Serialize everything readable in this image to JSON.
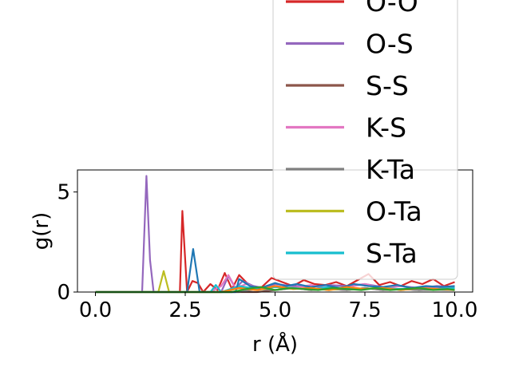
{
  "chart_data": {
    "type": "line",
    "xlabel": "r (Å)",
    "ylabel": "g(r)",
    "xlim": [
      -0.5,
      10.5
    ],
    "ylim": [
      0,
      6.1
    ],
    "xticks": [
      0.0,
      2.5,
      5.0,
      7.5,
      10.0
    ],
    "xtick_labels": [
      "0.0",
      "2.5",
      "5.0",
      "7.5",
      "10.0"
    ],
    "yticks": [
      0,
      5
    ],
    "ytick_labels": [
      "0",
      "5"
    ],
    "grid": false,
    "legend_placement": "upper-right (overflowing top of figure)",
    "series": [
      {
        "name": "O-O",
        "color": "#d62728",
        "x": [
          0,
          2.2,
          2.35,
          2.42,
          2.55,
          2.7,
          2.85,
          3.0,
          3.2,
          3.4,
          3.6,
          3.8,
          4.0,
          4.3,
          4.6,
          4.9,
          5.2,
          5.5,
          5.8,
          6.1,
          6.4,
          6.7,
          7.0,
          7.3,
          7.6,
          7.9,
          8.2,
          8.5,
          8.8,
          9.1,
          9.4,
          9.7,
          10.0
        ],
        "y": [
          0,
          0,
          0,
          4.05,
          0,
          0.55,
          0.45,
          0,
          0.4,
          0.1,
          0.95,
          0.15,
          0.85,
          0.3,
          0.2,
          0.7,
          0.5,
          0.3,
          0.6,
          0.4,
          0.35,
          0.5,
          0.3,
          0.6,
          0.9,
          0.35,
          0.5,
          0.3,
          0.55,
          0.4,
          0.65,
          0.3,
          0.5
        ]
      },
      {
        "name": "O-S",
        "color": "#9467bd",
        "x": [
          0,
          1.3,
          1.42,
          1.52,
          1.62,
          1.72,
          3.5,
          3.7,
          3.9,
          4.1,
          4.4,
          4.7,
          5.0,
          5.5,
          6.0,
          6.5,
          7.0,
          7.5,
          8.0,
          8.5,
          9.0,
          9.5,
          10.0
        ],
        "y": [
          0,
          0,
          5.8,
          1.6,
          0,
          0,
          0,
          0.8,
          0.2,
          0.55,
          0.3,
          0.2,
          0.4,
          0.3,
          0.25,
          0.35,
          0.3,
          0.4,
          0.25,
          0.3,
          0.2,
          0.3,
          0.25
        ]
      },
      {
        "name": "S-S",
        "color": "#8c564b",
        "x": [
          0,
          4.5,
          5.0,
          5.5,
          6.0,
          6.5,
          7.0,
          7.5,
          8.0,
          8.5,
          9.0,
          9.5,
          10.0
        ],
        "y": [
          0,
          0,
          0.1,
          0.2,
          0.1,
          0.15,
          0.1,
          0.2,
          0.1,
          0.15,
          0.1,
          0.12,
          0.1
        ]
      },
      {
        "name": "K-S",
        "color": "#e377c2",
        "x": [
          0,
          3.2,
          3.5,
          3.7,
          3.9,
          4.2,
          4.6,
          5.0,
          5.5,
          6.0,
          6.5,
          7.0,
          7.5,
          8.0,
          8.5,
          9.0,
          9.5,
          10.0
        ],
        "y": [
          0,
          0,
          0.3,
          0.85,
          0.2,
          0.4,
          0.15,
          0.3,
          0.2,
          0.35,
          0.15,
          0.25,
          0.4,
          0.2,
          0.3,
          0.15,
          0.25,
          0.2
        ]
      },
      {
        "name": "K-Ta",
        "color": "#7f7f7f",
        "x": [
          0,
          4.0,
          4.5,
          5.0,
          5.5,
          6.0,
          6.5,
          7.0,
          7.5,
          8.0,
          8.5,
          9.0,
          9.5,
          10.0
        ],
        "y": [
          0,
          0,
          0.15,
          0.1,
          0.2,
          0.1,
          0.15,
          0.1,
          0.2,
          0.1,
          0.15,
          0.1,
          0.12,
          0.1
        ]
      },
      {
        "name": "O-Ta",
        "color": "#bcbd22",
        "x": [
          0,
          1.75,
          1.9,
          2.05,
          2.2,
          3.5,
          4.0,
          4.5,
          5.0,
          5.5,
          6.0,
          6.5,
          7.0,
          7.5,
          8.0,
          8.5,
          9.0,
          9.5,
          10.0
        ],
        "y": [
          0,
          0,
          1.05,
          0,
          0,
          0,
          0.2,
          0.1,
          0.25,
          0.15,
          0.2,
          0.1,
          0.2,
          0.15,
          0.25,
          0.1,
          0.2,
          0.15,
          0.2
        ]
      },
      {
        "name": "S-Ta",
        "color": "#17becf",
        "x": [
          0,
          3.2,
          3.35,
          3.5,
          4.0,
          4.5,
          5.0,
          5.5,
          6.0,
          6.5,
          7.0,
          7.5,
          8.0,
          8.5,
          9.0,
          9.5,
          10.0
        ],
        "y": [
          0,
          0,
          0.35,
          0,
          0.3,
          0.15,
          0.25,
          0.2,
          0.15,
          0.25,
          0.2,
          0.15,
          0.2,
          0.15,
          0.2,
          0.15,
          0.2
        ]
      },
      {
        "name": "",
        "color": "#1f77b4",
        "x": [
          0,
          2.55,
          2.72,
          2.9,
          3.05,
          3.9,
          4.0,
          4.3,
          4.6,
          5.0,
          5.3,
          5.6,
          6.0,
          6.4,
          6.8,
          7.2,
          7.6,
          8.0,
          8.4,
          8.8,
          9.2,
          9.6,
          10.0
        ],
        "y": [
          0,
          0,
          2.15,
          0,
          0,
          0,
          0.65,
          0.3,
          0.2,
          0.45,
          0.3,
          0.4,
          0.25,
          0.35,
          0.2,
          0.4,
          0.3,
          0.25,
          0.35,
          0.2,
          0.3,
          0.25,
          0.3
        ]
      },
      {
        "name": "",
        "color": "#ff7f0e",
        "x": [
          0,
          3.5,
          4.0,
          4.5,
          5.0,
          5.5,
          6.0,
          6.5,
          7.0,
          7.5,
          8.0,
          8.5,
          9.0,
          9.5,
          10.0
        ],
        "y": [
          0,
          0,
          0.2,
          0.1,
          0.3,
          0.15,
          0.2,
          0.1,
          0.25,
          0.15,
          0.2,
          0.1,
          0.2,
          0.15,
          0.1
        ]
      },
      {
        "name": "",
        "color": "#2ca02c",
        "x": [
          0,
          3.8,
          4.2,
          4.6,
          5.0,
          5.4,
          5.8,
          6.2,
          6.6,
          7.0,
          7.4,
          7.8,
          8.2,
          8.6,
          9.0,
          9.4,
          9.8,
          10.0
        ],
        "y": [
          0,
          0,
          0.15,
          0.25,
          0.1,
          0.2,
          0.15,
          0.1,
          0.2,
          0.15,
          0.1,
          0.2,
          0.1,
          0.15,
          0.2,
          0.1,
          0.15,
          0.1
        ]
      }
    ],
    "legend": {
      "entries": [
        {
          "label": "O-O",
          "color": "#d62728"
        },
        {
          "label": "O-S",
          "color": "#9467bd"
        },
        {
          "label": "S-S",
          "color": "#8c564b"
        },
        {
          "label": "K-S",
          "color": "#e377c2"
        },
        {
          "label": "K-Ta",
          "color": "#7f7f7f"
        },
        {
          "label": "O-Ta",
          "color": "#bcbd22"
        },
        {
          "label": "S-Ta",
          "color": "#17becf"
        }
      ]
    }
  }
}
